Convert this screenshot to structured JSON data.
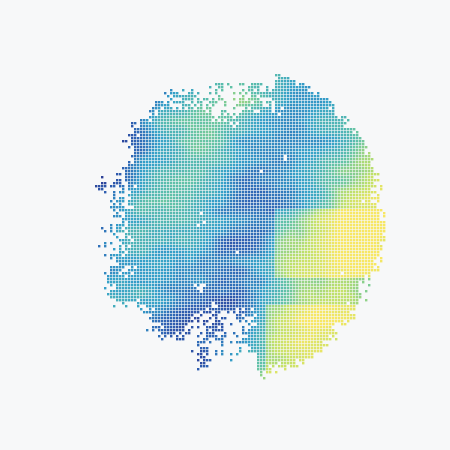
{
  "map": {
    "type": "gridded-field-disk",
    "colormap": [
      "#2b2c86",
      "#2f63b4",
      "#35a1c9",
      "#63c3a6",
      "#bfe06a",
      "#f7e764"
    ],
    "grid_line_color": "#ffffff",
    "background_color": "#f7f8f9"
  }
}
